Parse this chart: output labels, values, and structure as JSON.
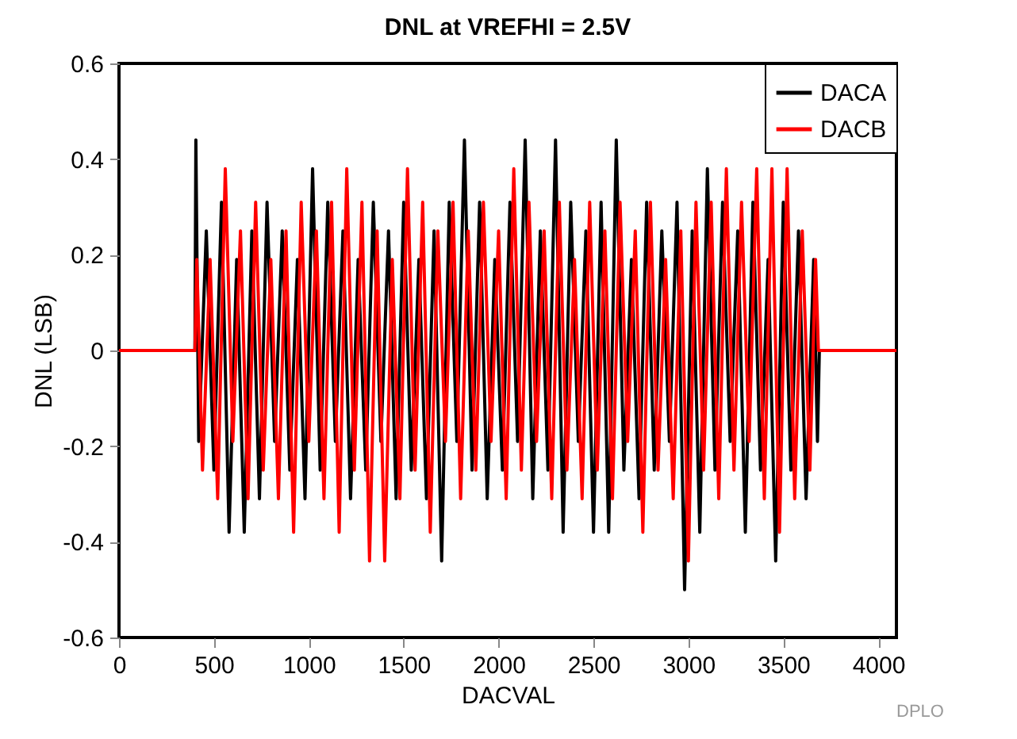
{
  "chart_data": {
    "type": "line",
    "title": "DNL at VREFHI = 2.5V",
    "xlabel": "DACVAL",
    "ylabel": "DNL (LSB)",
    "xlim": [
      0,
      4096
    ],
    "xticks": [
      0,
      500,
      1000,
      1500,
      2000,
      2500,
      3000,
      3500,
      4000
    ],
    "ylim": [
      -0.6,
      0.6
    ],
    "yticks": [
      -0.6,
      -0.4,
      -0.2,
      0,
      0.2,
      0.4,
      0.6
    ],
    "grid": false,
    "legend": "top right",
    "line_style": "solid",
    "marker": "none",
    "annotations": [
      "DPLO"
    ],
    "series": [
      {
        "name": "DACA",
        "color": "#000000",
        "x": [
          0,
          400,
          405,
          420,
          460,
          500,
          540,
          580,
          620,
          660,
          700,
          740,
          780,
          820,
          860,
          900,
          940,
          980,
          1020,
          1060,
          1100,
          1140,
          1180,
          1220,
          1260,
          1300,
          1340,
          1380,
          1420,
          1460,
          1500,
          1540,
          1580,
          1620,
          1660,
          1700,
          1740,
          1780,
          1820,
          1860,
          1900,
          1940,
          1980,
          2020,
          2060,
          2100,
          2140,
          2180,
          2220,
          2260,
          2300,
          2340,
          2380,
          2420,
          2460,
          2500,
          2540,
          2580,
          2620,
          2660,
          2700,
          2740,
          2780,
          2820,
          2860,
          2900,
          2940,
          2980,
          3020,
          3060,
          3100,
          3140,
          3180,
          3220,
          3260,
          3300,
          3340,
          3380,
          3420,
          3460,
          3500,
          3540,
          3580,
          3620,
          3660,
          3680,
          3690,
          4096
        ],
        "values": [
          0,
          0,
          0.44,
          -0.19,
          0.25,
          -0.25,
          0.31,
          -0.38,
          0.19,
          -0.38,
          0.25,
          -0.31,
          0.31,
          -0.19,
          0.25,
          -0.25,
          0.19,
          -0.31,
          0.38,
          -0.25,
          0.31,
          -0.19,
          0.25,
          -0.31,
          0.19,
          -0.25,
          0.31,
          -0.19,
          0.25,
          -0.31,
          0.31,
          -0.25,
          0.19,
          -0.31,
          0.25,
          -0.44,
          0.31,
          -0.19,
          0.44,
          -0.25,
          0.31,
          -0.31,
          0.19,
          -0.25,
          0.31,
          -0.19,
          0.44,
          -0.31,
          0.25,
          -0.25,
          0.44,
          -0.38,
          0.31,
          -0.19,
          0.25,
          -0.38,
          0.31,
          -0.38,
          0.44,
          -0.25,
          0.19,
          -0.31,
          0.31,
          -0.25,
          0.25,
          -0.19,
          0.31,
          -0.5,
          0.25,
          -0.38,
          0.38,
          -0.25,
          0.31,
          -0.19,
          0.25,
          -0.38,
          0.31,
          -0.25,
          0.19,
          -0.44,
          0.31,
          -0.25,
          0.25,
          -0.31,
          0.19,
          -0.19,
          0,
          0
        ]
      },
      {
        "name": "DACB",
        "color": "#ff0000",
        "x": [
          0,
          400,
          410,
          440,
          480,
          520,
          560,
          600,
          640,
          680,
          720,
          760,
          800,
          840,
          880,
          920,
          960,
          1000,
          1040,
          1080,
          1120,
          1160,
          1200,
          1240,
          1280,
          1320,
          1360,
          1400,
          1440,
          1480,
          1520,
          1560,
          1600,
          1640,
          1680,
          1720,
          1760,
          1800,
          1840,
          1880,
          1920,
          1960,
          2000,
          2040,
          2080,
          2120,
          2160,
          2200,
          2240,
          2280,
          2320,
          2360,
          2400,
          2440,
          2480,
          2520,
          2560,
          2600,
          2640,
          2680,
          2720,
          2760,
          2800,
          2840,
          2880,
          2920,
          2960,
          3000,
          3040,
          3080,
          3120,
          3160,
          3200,
          3240,
          3280,
          3320,
          3360,
          3400,
          3440,
          3480,
          3520,
          3560,
          3600,
          3640,
          3670,
          3685,
          4096
        ],
        "values": [
          0,
          0,
          0.19,
          -0.25,
          0.19,
          -0.31,
          0.38,
          -0.19,
          0.25,
          -0.31,
          0.31,
          -0.25,
          0.19,
          -0.31,
          0.25,
          -0.38,
          0.31,
          -0.19,
          0.25,
          -0.31,
          0.31,
          -0.38,
          0.38,
          -0.25,
          0.31,
          -0.44,
          0.25,
          -0.44,
          0.19,
          -0.31,
          0.38,
          -0.25,
          0.31,
          -0.38,
          0.25,
          -0.19,
          0.31,
          -0.31,
          0.25,
          -0.25,
          0.31,
          -0.19,
          0.25,
          -0.31,
          0.38,
          -0.25,
          0.31,
          -0.19,
          0.25,
          -0.31,
          0.31,
          -0.25,
          0.19,
          -0.31,
          0.31,
          -0.25,
          0.25,
          -0.31,
          0.31,
          -0.19,
          0.25,
          -0.38,
          0.31,
          -0.25,
          0.19,
          -0.31,
          0.25,
          -0.44,
          0.31,
          -0.25,
          0.31,
          -0.31,
          0.38,
          -0.25,
          0.31,
          -0.19,
          0.38,
          -0.31,
          0.38,
          -0.38,
          0.38,
          -0.31,
          0.25,
          -0.25,
          0.19,
          0,
          0
        ]
      }
    ]
  }
}
